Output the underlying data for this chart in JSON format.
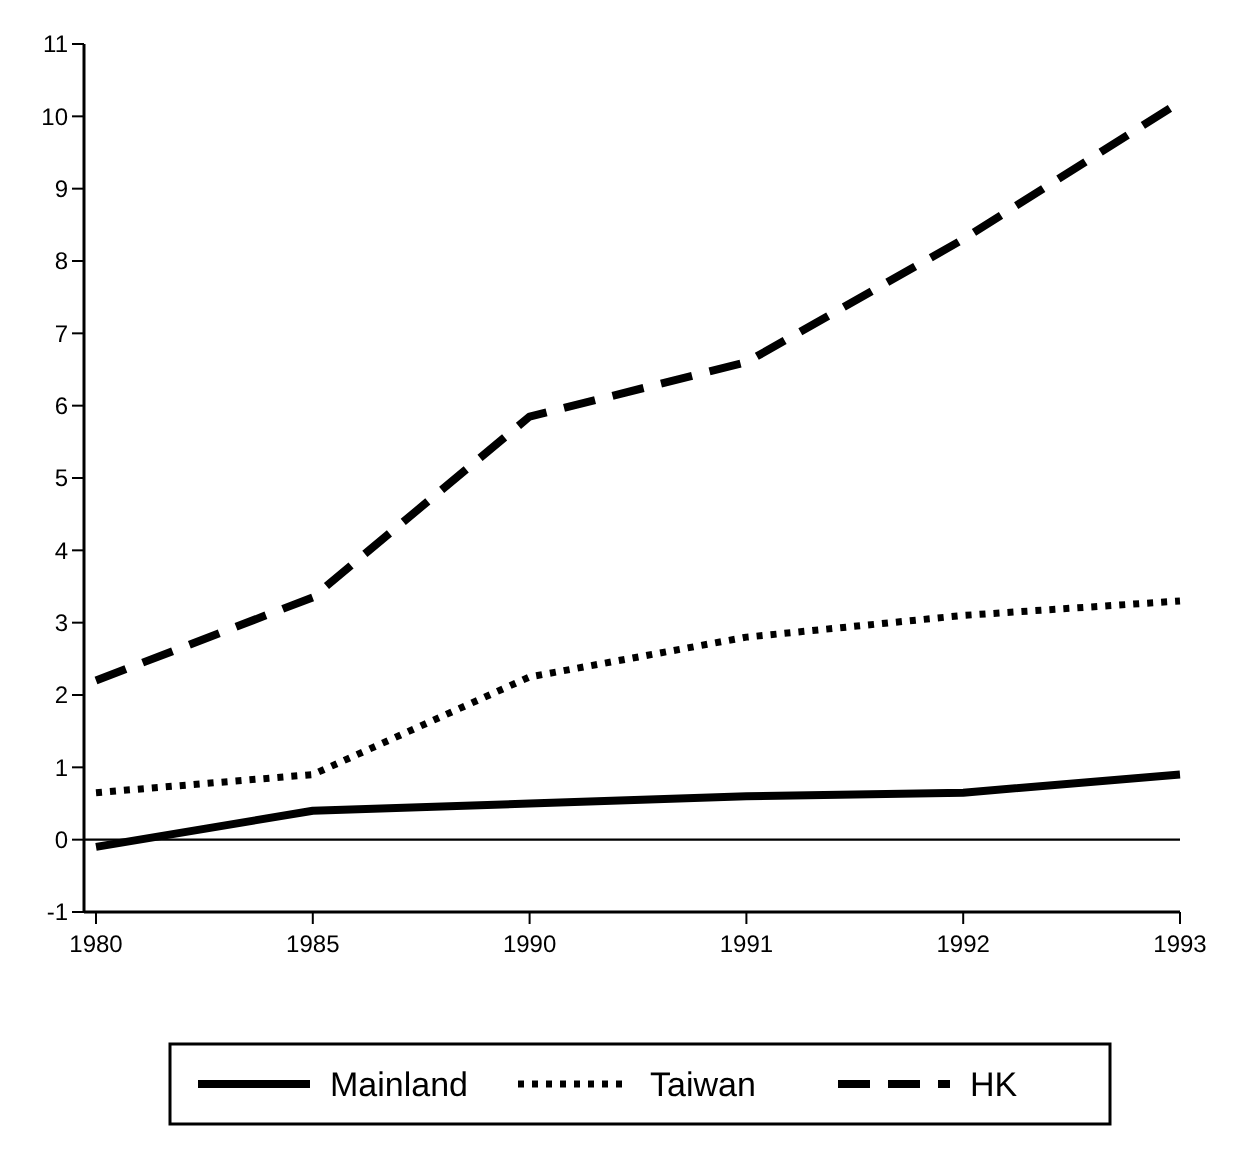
{
  "chart_data": {
    "type": "line",
    "categories": [
      "1980",
      "1985",
      "1990",
      "1991",
      "1992",
      "1993"
    ],
    "series": [
      {
        "name": "Mainland",
        "color": "#000000",
        "line_style": "solid",
        "values": [
          -0.1,
          0.4,
          0.5,
          0.6,
          0.65,
          0.9
        ]
      },
      {
        "name": "Taiwan",
        "color": "#000000",
        "line_style": "dotted",
        "values": [
          0.65,
          0.9,
          2.25,
          2.8,
          3.1,
          3.3
        ]
      },
      {
        "name": "HK",
        "color": "#000000",
        "line_style": "dashed",
        "values": [
          2.2,
          3.35,
          5.85,
          6.6,
          8.3,
          10.2
        ]
      }
    ],
    "ylim": [
      -1,
      11
    ],
    "yticks": [
      -1,
      0,
      1,
      2,
      3,
      4,
      5,
      6,
      7,
      8,
      9,
      10,
      11
    ],
    "ref_lines": [
      {
        "axis": "y",
        "value": 0
      }
    ],
    "grid": false,
    "legend": "bottom"
  }
}
